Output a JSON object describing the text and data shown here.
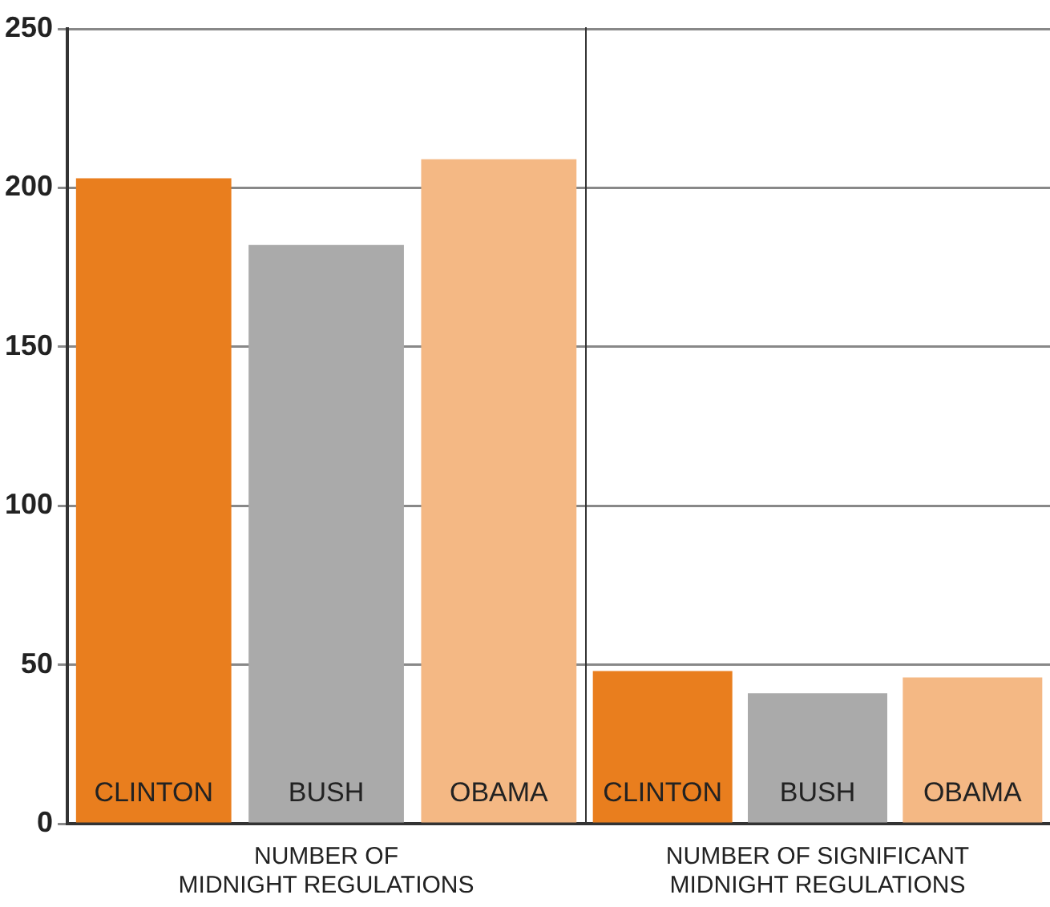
{
  "chart_data": [
    {
      "type": "bar",
      "xlabel": "NUMBER OF\nMIDNIGHT REGULATIONS",
      "categories": [
        "CLINTON",
        "BUSH",
        "OBAMA"
      ],
      "values": [
        203,
        182,
        209
      ],
      "colors": [
        "#e97e1e",
        "#aaaaaa",
        "#f4b884"
      ],
      "ylim": [
        0,
        250
      ],
      "yticks": [
        0,
        50,
        100,
        150,
        200,
        250
      ],
      "grid": "y"
    },
    {
      "type": "bar",
      "xlabel": "NUMBER OF SIGNIFICANT\nMIDNIGHT REGULATIONS",
      "categories": [
        "CLINTON",
        "BUSH",
        "OBAMA"
      ],
      "values": [
        48,
        41,
        46
      ],
      "colors": [
        "#e97e1e",
        "#aaaaaa",
        "#f4b884"
      ],
      "ylim": [
        0,
        250
      ],
      "yticks": [
        0,
        50,
        100,
        150,
        200,
        250
      ],
      "grid": "y",
      "tick_labels": "x"
    }
  ]
}
